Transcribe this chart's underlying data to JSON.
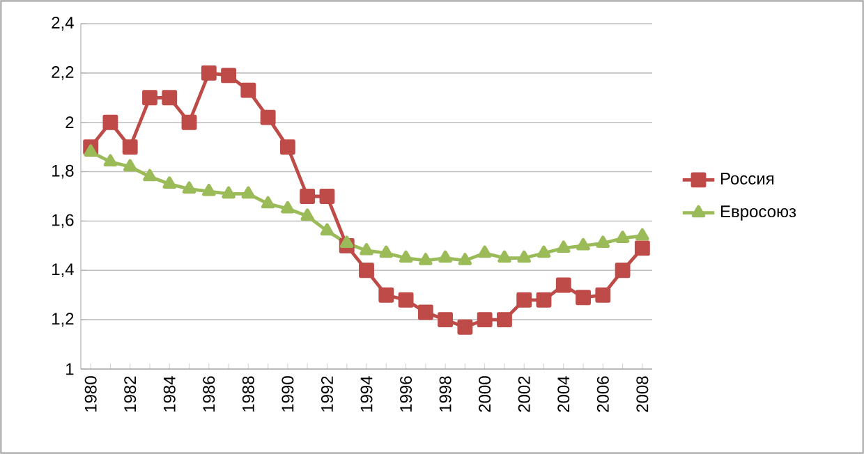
{
  "chart_data": {
    "type": "line",
    "categories": [
      "1980",
      null,
      "1982",
      null,
      "1984",
      null,
      "1986",
      null,
      "1988",
      null,
      "1990",
      null,
      "1992",
      null,
      "1994",
      null,
      "1996",
      null,
      "1998",
      null,
      "2000",
      null,
      "2002",
      null,
      "2004",
      null,
      "2006",
      null,
      "2008"
    ],
    "series": [
      {
        "name": "Россия",
        "color": "#be4b48",
        "marker": "square",
        "values": [
          1.9,
          2.0,
          1.9,
          2.1,
          2.1,
          2.0,
          2.2,
          2.19,
          2.13,
          2.02,
          1.9,
          1.7,
          1.7,
          1.5,
          1.4,
          1.3,
          1.28,
          1.23,
          1.2,
          1.17,
          1.2,
          1.2,
          1.28,
          1.28,
          1.34,
          1.29,
          1.3,
          1.4,
          1.49
        ]
      },
      {
        "name": "Евросоюз",
        "color": "#9bbb59",
        "marker": "triangle",
        "values": [
          1.88,
          1.84,
          1.82,
          1.78,
          1.75,
          1.73,
          1.72,
          1.71,
          1.71,
          1.67,
          1.65,
          1.62,
          1.56,
          1.51,
          1.48,
          1.47,
          1.45,
          1.44,
          1.45,
          1.44,
          1.47,
          1.45,
          1.45,
          1.47,
          1.49,
          1.5,
          1.51,
          1.53,
          1.54
        ]
      }
    ],
    "ylim": [
      1,
      2.4
    ],
    "yticks": [
      1,
      {
        "value": 1.2,
        "label": "1,2"
      },
      {
        "value": 1.4,
        "label": "1,4"
      },
      {
        "value": 1.6,
        "label": "1,6"
      },
      {
        "value": 1.8,
        "label": "1,8"
      },
      2,
      {
        "value": 2.2,
        "label": "2,2"
      },
      {
        "value": 2.4,
        "label": "2,4"
      }
    ],
    "grid": "y",
    "legend": "right",
    "line_style": "solid"
  }
}
